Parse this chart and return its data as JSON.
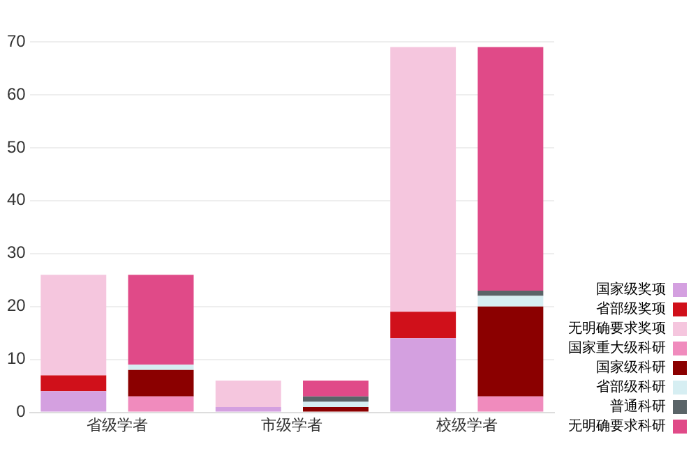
{
  "chart_data": {
    "type": "bar",
    "stacked": true,
    "categories": [
      "省级学者",
      null,
      "市级学者",
      null,
      "校级学者",
      null
    ],
    "series": [
      {
        "name": "国家级奖项",
        "color": "#d4a0e0",
        "values": [
          4,
          null,
          1,
          null,
          14,
          null
        ]
      },
      {
        "name": "省部级奖项",
        "color": "#d0101a",
        "values": [
          3,
          null,
          0,
          null,
          5,
          null
        ]
      },
      {
        "name": "无明确要求奖项",
        "color": "#f5c6de",
        "values": [
          19,
          null,
          5,
          null,
          50,
          null
        ]
      },
      {
        "name": "国家重大级科研",
        "color": "#f08bbd",
        "values": [
          null,
          3,
          null,
          0,
          null,
          3
        ]
      },
      {
        "name": "国家级科研",
        "color": "#8b0000",
        "values": [
          null,
          5,
          null,
          1,
          null,
          17
        ]
      },
      {
        "name": "省部级科研",
        "color": "#d6eef2",
        "values": [
          null,
          1,
          null,
          1,
          null,
          2
        ]
      },
      {
        "name": "普通科研",
        "color": "#5a6468",
        "values": [
          null,
          0,
          null,
          1,
          null,
          1
        ]
      },
      {
        "name": "无明确要求科研",
        "color": "#e04a88",
        "values": [
          null,
          17,
          null,
          3,
          null,
          46
        ]
      }
    ],
    "ylim": [
      0,
      70
    ],
    "yticks": [
      0,
      10,
      20,
      30,
      40,
      50,
      60,
      70
    ],
    "grid": "y",
    "legend": "bottom right"
  }
}
